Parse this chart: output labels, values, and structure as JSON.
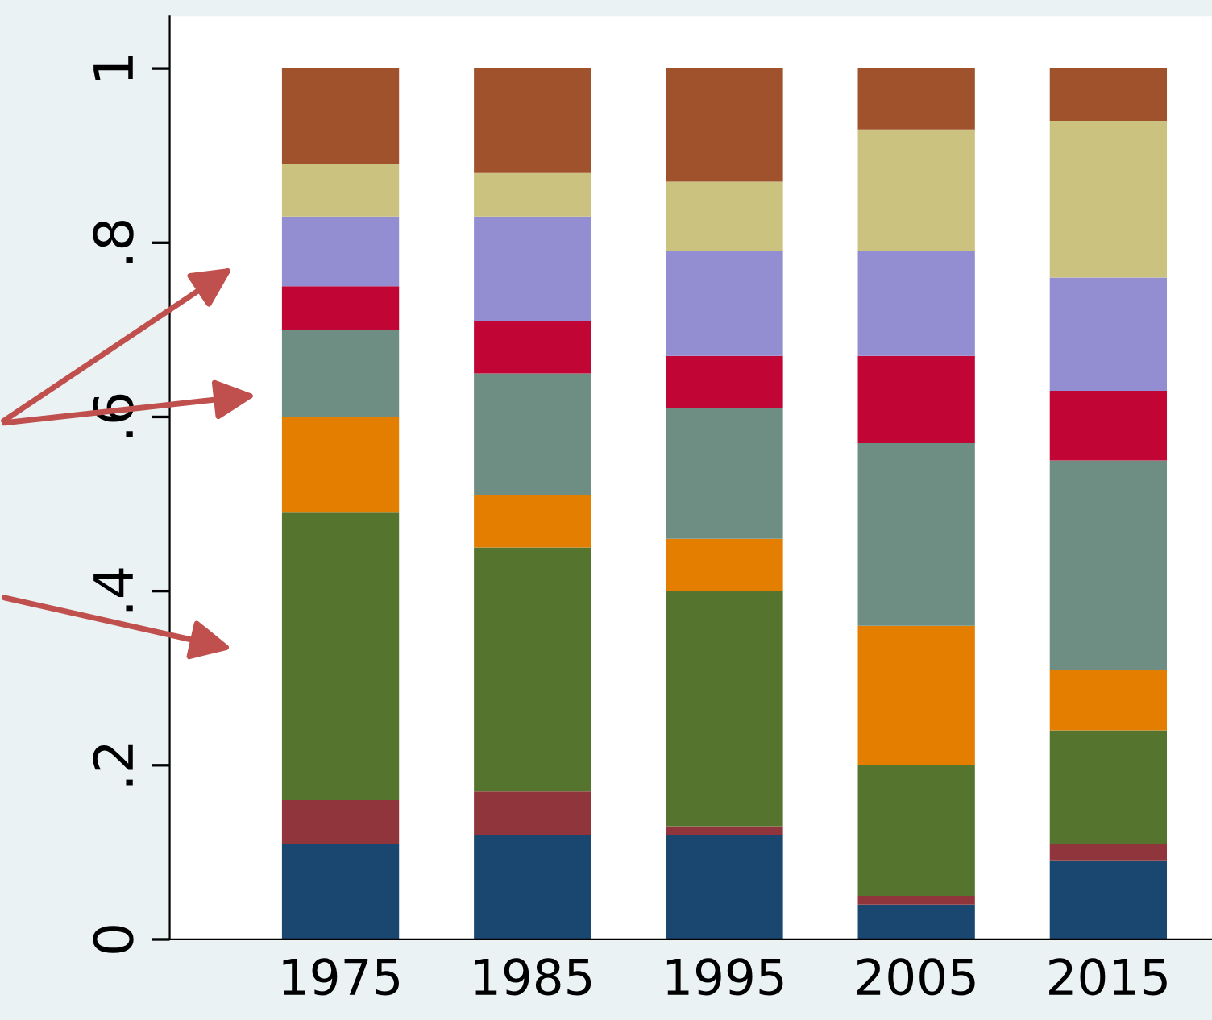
{
  "chart_data": {
    "type": "bar",
    "stacked": true,
    "categories": [
      "1975",
      "1985",
      "1995",
      "2005",
      "2015"
    ],
    "series": [
      {
        "color": "#1a476f",
        "values": [
          0.11,
          0.12,
          0.12,
          0.04,
          0.09
        ]
      },
      {
        "color": "#90353b",
        "values": [
          0.05,
          0.05,
          0.01,
          0.01,
          0.02
        ]
      },
      {
        "color": "#55752f",
        "values": [
          0.33,
          0.28,
          0.27,
          0.15,
          0.13
        ]
      },
      {
        "color": "#e37e00",
        "values": [
          0.11,
          0.06,
          0.06,
          0.16,
          0.07
        ]
      },
      {
        "color": "#6e8e84",
        "values": [
          0.1,
          0.14,
          0.15,
          0.21,
          0.24
        ]
      },
      {
        "color": "#c10534",
        "values": [
          0.05,
          0.06,
          0.06,
          0.1,
          0.08
        ]
      },
      {
        "color": "#938dd2",
        "values": [
          0.08,
          0.12,
          0.12,
          0.12,
          0.13
        ]
      },
      {
        "color": "#cac27e",
        "values": [
          0.06,
          0.05,
          0.08,
          0.14,
          0.18
        ]
      },
      {
        "color": "#a0522d",
        "values": [
          0.11,
          0.12,
          0.13,
          0.07,
          0.06
        ]
      }
    ],
    "ylim": [
      0,
      1.06
    ],
    "yticks": [
      0,
      {
        "value": 0.2,
        "label": ".2"
      },
      {
        "value": 0.4,
        "label": ".4"
      },
      {
        "value": 0.6,
        "label": ".6"
      },
      {
        "value": 0.8,
        "label": ".8"
      },
      1
    ],
    "grid": false
  }
}
